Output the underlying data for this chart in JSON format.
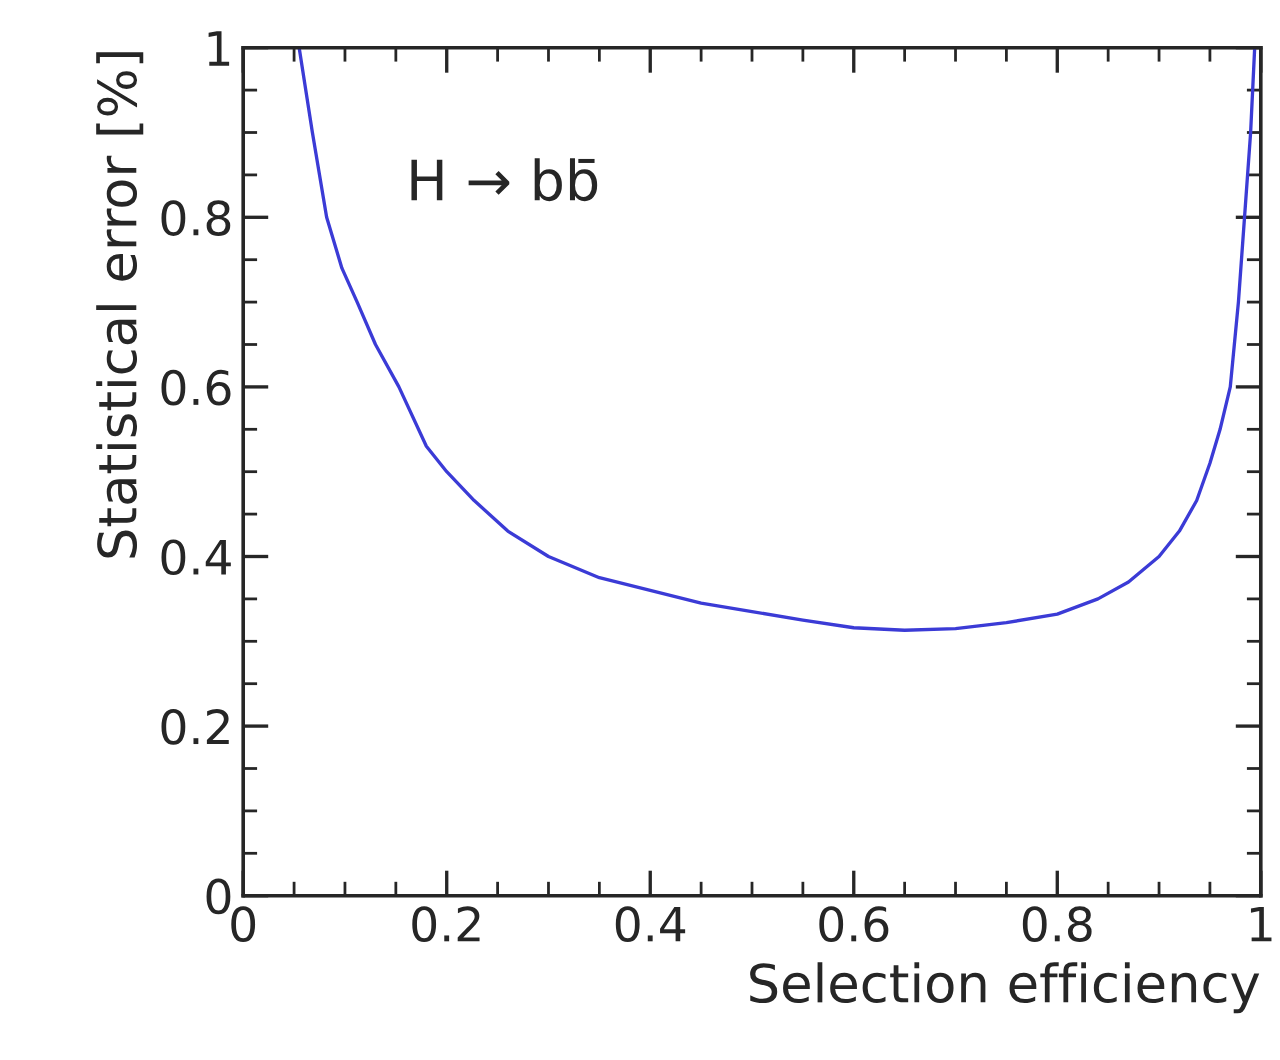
{
  "chart_data": {
    "type": "line",
    "xlabel": "Selection efficiency",
    "ylabel": "Statistical error [%]",
    "annotations": [
      "H → bb̄"
    ],
    "series": [
      {
        "color": "#3b3bd6",
        "x": [
          0.055,
          0.068,
          0.082,
          0.097,
          0.112,
          0.13,
          0.153,
          0.18,
          0.2,
          0.227,
          0.26,
          0.3,
          0.35,
          0.4,
          0.45,
          0.5,
          0.55,
          0.6,
          0.65,
          0.7,
          0.75,
          0.8,
          0.84,
          0.87,
          0.9,
          0.92,
          0.937,
          0.95,
          0.96,
          0.97,
          0.978,
          0.984,
          0.99,
          0.994
        ],
        "values": [
          1.0,
          0.9,
          0.8,
          0.74,
          0.7,
          0.65,
          0.6,
          0.53,
          0.5,
          0.466,
          0.43,
          0.4,
          0.375,
          0.36,
          0.345,
          0.335,
          0.325,
          0.316,
          0.313,
          0.315,
          0.322,
          0.332,
          0.35,
          0.37,
          0.4,
          0.43,
          0.466,
          0.51,
          0.55,
          0.6,
          0.7,
          0.8,
          0.9,
          1.0
        ]
      }
    ],
    "xlim": [
      0,
      1
    ],
    "ylim": [
      0,
      1
    ],
    "xticks": [
      0,
      0.2,
      0.4,
      0.6,
      0.8,
      1
    ],
    "yticks": [
      0,
      0.2,
      0.4,
      0.6,
      0.8,
      1
    ],
    "grid": false,
    "legend": false,
    "marker": "none",
    "line_style": "solid"
  }
}
